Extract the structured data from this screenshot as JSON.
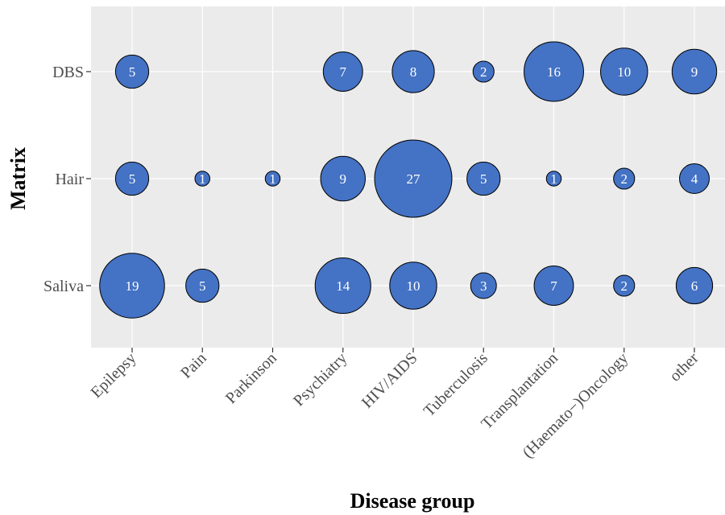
{
  "chart_data": {
    "type": "scatter",
    "subtype": "bubble",
    "xlabel": "Disease group",
    "ylabel": "Matrix",
    "categories_x": [
      "Epilepsy",
      "Pain",
      "Parkinson",
      "Psychiatry",
      "HIV/AIDS",
      "Tuberculosis",
      "Transplantation",
      "(Haemato−)Oncology",
      "other"
    ],
    "categories_y": [
      "DBS",
      "Hair",
      "Saliva"
    ],
    "points": [
      {
        "x": "Epilepsy",
        "y": "DBS",
        "value": 5
      },
      {
        "x": "Psychiatry",
        "y": "DBS",
        "value": 7
      },
      {
        "x": "HIV/AIDS",
        "y": "DBS",
        "value": 8
      },
      {
        "x": "Tuberculosis",
        "y": "DBS",
        "value": 2
      },
      {
        "x": "Transplantation",
        "y": "DBS",
        "value": 16
      },
      {
        "x": "(Haemato−)Oncology",
        "y": "DBS",
        "value": 10
      },
      {
        "x": "other",
        "y": "DBS",
        "value": 9
      },
      {
        "x": "Epilepsy",
        "y": "Hair",
        "value": 5
      },
      {
        "x": "Pain",
        "y": "Hair",
        "value": 1
      },
      {
        "x": "Parkinson",
        "y": "Hair",
        "value": 1
      },
      {
        "x": "Psychiatry",
        "y": "Hair",
        "value": 9
      },
      {
        "x": "HIV/AIDS",
        "y": "Hair",
        "value": 27
      },
      {
        "x": "Tuberculosis",
        "y": "Hair",
        "value": 5
      },
      {
        "x": "Transplantation",
        "y": "Hair",
        "value": 1
      },
      {
        "x": "(Haemato−)Oncology",
        "y": "Hair",
        "value": 2
      },
      {
        "x": "other",
        "y": "Hair",
        "value": 4
      },
      {
        "x": "Epilepsy",
        "y": "Saliva",
        "value": 19
      },
      {
        "x": "Pain",
        "y": "Saliva",
        "value": 5
      },
      {
        "x": "Psychiatry",
        "y": "Saliva",
        "value": 14
      },
      {
        "x": "HIV/AIDS",
        "y": "Saliva",
        "value": 10
      },
      {
        "x": "Tuberculosis",
        "y": "Saliva",
        "value": 3
      },
      {
        "x": "Transplantation",
        "y": "Saliva",
        "value": 7
      },
      {
        "x": "(Haemato−)Oncology",
        "y": "Saliva",
        "value": 2
      },
      {
        "x": "other",
        "y": "Saliva",
        "value": 6
      }
    ],
    "grid": true,
    "legend": "none",
    "colors": {
      "bubble_fill": "#4472C4",
      "bubble_stroke": "#000000",
      "panel_background": "#EBEBEB",
      "grid": "#FFFFFF"
    }
  }
}
